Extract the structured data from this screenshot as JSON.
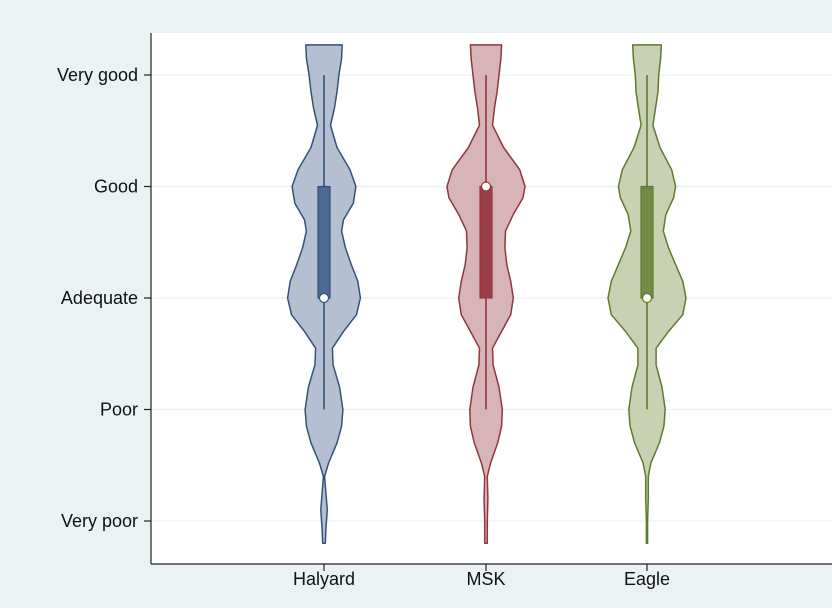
{
  "chart_data": {
    "type": "violin",
    "title": "",
    "xlabel": "",
    "ylabel": "",
    "categories": [
      "Halyard",
      "MSK",
      "Eagle"
    ],
    "y_levels": [
      {
        "value": 1,
        "label": "Very poor"
      },
      {
        "value": 2,
        "label": "Poor"
      },
      {
        "value": 3,
        "label": "Adequate"
      },
      {
        "value": 4,
        "label": "Good"
      },
      {
        "value": 5,
        "label": "Very good"
      }
    ],
    "ylim": [
      0.75,
      5.27
    ],
    "grid": true,
    "legend": "none",
    "series": [
      {
        "category": "Halyard",
        "fill": "#b4c0d1",
        "stroke": "#34517a",
        "box_fill": "#4c6a92",
        "box": {
          "q1": 3,
          "median": 3,
          "q3": 4,
          "whisker_low": 2,
          "whisker_high": 5
        },
        "density": [
          [
            0.8,
            0.02
          ],
          [
            0.93,
            0.03
          ],
          [
            1.1,
            0.05
          ],
          [
            1.25,
            0.03
          ],
          [
            1.4,
            0.01
          ],
          [
            1.52,
            0.07
          ],
          [
            1.7,
            0.2
          ],
          [
            1.85,
            0.27
          ],
          [
            2.0,
            0.29
          ],
          [
            2.2,
            0.24
          ],
          [
            2.4,
            0.14
          ],
          [
            2.55,
            0.13
          ],
          [
            2.7,
            0.3
          ],
          [
            2.85,
            0.5
          ],
          [
            3.0,
            0.56
          ],
          [
            3.15,
            0.52
          ],
          [
            3.3,
            0.42
          ],
          [
            3.45,
            0.33
          ],
          [
            3.6,
            0.27
          ],
          [
            3.7,
            0.3
          ],
          [
            3.85,
            0.45
          ],
          [
            4.0,
            0.49
          ],
          [
            4.15,
            0.4
          ],
          [
            4.35,
            0.2
          ],
          [
            4.55,
            0.1
          ],
          [
            4.7,
            0.16
          ],
          [
            4.85,
            0.2
          ],
          [
            5.0,
            0.23
          ],
          [
            5.15,
            0.27
          ],
          [
            5.27,
            0.28
          ]
        ]
      },
      {
        "category": "MSK",
        "fill": "#d7b4b8",
        "stroke": "#92363d",
        "box_fill": "#9b4048",
        "box": {
          "q1": 3,
          "median": 4,
          "q3": 4,
          "whisker_low": 2,
          "whisker_high": 5
        },
        "density": [
          [
            0.8,
            0.02
          ],
          [
            1.0,
            0.02
          ],
          [
            1.2,
            0.03
          ],
          [
            1.4,
            0.02
          ],
          [
            1.52,
            0.07
          ],
          [
            1.7,
            0.18
          ],
          [
            1.85,
            0.24
          ],
          [
            2.0,
            0.25
          ],
          [
            2.2,
            0.2
          ],
          [
            2.4,
            0.11
          ],
          [
            2.55,
            0.1
          ],
          [
            2.7,
            0.24
          ],
          [
            2.85,
            0.38
          ],
          [
            3.0,
            0.42
          ],
          [
            3.15,
            0.38
          ],
          [
            3.3,
            0.32
          ],
          [
            3.45,
            0.29
          ],
          [
            3.6,
            0.3
          ],
          [
            3.75,
            0.42
          ],
          [
            3.9,
            0.57
          ],
          [
            4.0,
            0.6
          ],
          [
            4.15,
            0.52
          ],
          [
            4.35,
            0.27
          ],
          [
            4.55,
            0.1
          ],
          [
            4.7,
            0.13
          ],
          [
            4.85,
            0.17
          ],
          [
            5.0,
            0.2
          ],
          [
            5.15,
            0.23
          ],
          [
            5.27,
            0.24
          ]
        ]
      },
      {
        "category": "Eagle",
        "fill": "#c8d2b2",
        "stroke": "#607a2c",
        "box_fill": "#728a48",
        "box": {
          "q1": 3,
          "median": 3,
          "q3": 4,
          "whisker_low": 2,
          "whisker_high": 5
        },
        "density": [
          [
            0.8,
            0.01
          ],
          [
            1.0,
            0.01
          ],
          [
            1.2,
            0.02
          ],
          [
            1.4,
            0.02
          ],
          [
            1.52,
            0.06
          ],
          [
            1.7,
            0.19
          ],
          [
            1.85,
            0.26
          ],
          [
            2.0,
            0.28
          ],
          [
            2.2,
            0.23
          ],
          [
            2.4,
            0.14
          ],
          [
            2.55,
            0.14
          ],
          [
            2.7,
            0.33
          ],
          [
            2.85,
            0.55
          ],
          [
            3.0,
            0.6
          ],
          [
            3.15,
            0.55
          ],
          [
            3.3,
            0.44
          ],
          [
            3.45,
            0.33
          ],
          [
            3.6,
            0.25
          ],
          [
            3.75,
            0.29
          ],
          [
            3.9,
            0.41
          ],
          [
            4.0,
            0.44
          ],
          [
            4.15,
            0.38
          ],
          [
            4.35,
            0.2
          ],
          [
            4.55,
            0.09
          ],
          [
            4.7,
            0.13
          ],
          [
            4.85,
            0.17
          ],
          [
            5.0,
            0.18
          ],
          [
            5.15,
            0.21
          ],
          [
            5.27,
            0.22
          ]
        ]
      }
    ]
  }
}
